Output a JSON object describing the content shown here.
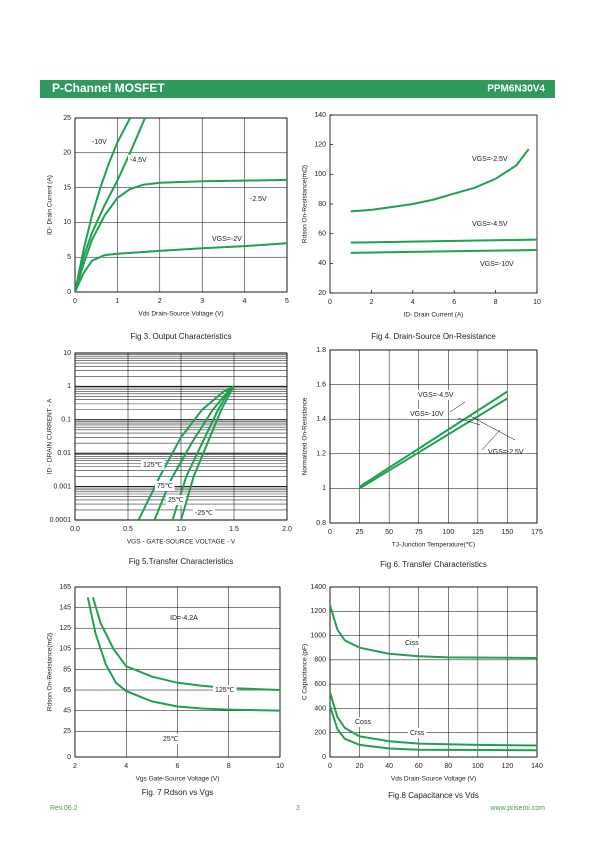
{
  "header": {
    "title": "P-Channel MOSFET",
    "part": "PPM6N30V4"
  },
  "chart_data": [
    {
      "type": "line",
      "caption": "Fig 3. Output Characteristics",
      "xlabel": "Vds Drain-Source Voltage (V)",
      "ylabel": "ID- Drain Current (A)",
      "xlim": [
        0,
        5
      ],
      "ylim": [
        0,
        25
      ],
      "xticks": [
        0,
        1,
        2,
        3,
        4,
        5
      ],
      "yticks": [
        0,
        5,
        10,
        15,
        20,
        25
      ],
      "grid": true,
      "color": "#1ea150",
      "series": [
        {
          "name": "-10V",
          "x": [
            0,
            0.2,
            0.4,
            0.6,
            0.8,
            1,
            1.3
          ],
          "values": [
            0,
            6,
            11,
            15,
            18.5,
            21.5,
            25
          ]
        },
        {
          "name": "-4.5V",
          "x": [
            0,
            0.2,
            0.4,
            0.7,
            1,
            1.3,
            1.65
          ],
          "values": [
            0,
            5,
            8.5,
            12.5,
            16,
            20,
            25
          ]
        },
        {
          "name": "-2.5V",
          "x": [
            0,
            0.2,
            0.4,
            0.7,
            1,
            1.3,
            1.6,
            2,
            3,
            4,
            5
          ],
          "values": [
            0,
            4,
            7.5,
            11,
            13.5,
            14.8,
            15.4,
            15.7,
            15.9,
            16,
            16.1
          ]
        },
        {
          "name": "VGS=-2V",
          "x": [
            0,
            0.2,
            0.4,
            0.7,
            1,
            2,
            3,
            4,
            5
          ],
          "values": [
            0,
            2.7,
            4.5,
            5.3,
            5.5,
            5.9,
            6.3,
            6.6,
            7
          ]
        }
      ]
    },
    {
      "type": "line",
      "caption": "Fig 4. Drain-Source On-Resistance",
      "xlabel": "ID- Drain Current (A)",
      "ylabel": "Rdson On-Resistance(mΩ)",
      "xlim": [
        0,
        10
      ],
      "ylim": [
        20,
        140
      ],
      "xticks": [
        0,
        2,
        4,
        6,
        8,
        10
      ],
      "yticks": [
        20,
        40,
        60,
        80,
        100,
        120,
        140
      ],
      "grid": false,
      "color": "#1ea150",
      "series": [
        {
          "name": "VGS=-2.5V",
          "x": [
            1,
            2,
            3,
            4,
            5,
            6,
            7,
            8,
            9,
            9.6
          ],
          "values": [
            75,
            76,
            78,
            80,
            83,
            87,
            91,
            97,
            106,
            117
          ]
        },
        {
          "name": "VGS=-4.5V",
          "x": [
            1,
            10
          ],
          "values": [
            54,
            56
          ]
        },
        {
          "name": "VGS=-10V",
          "x": [
            1,
            10
          ],
          "values": [
            47,
            49
          ]
        }
      ]
    },
    {
      "type": "line",
      "caption": "Fig 5.Transfer Characteristics",
      "xlabel": "VGS - GATE-SOURCE VOLTAGE - V",
      "ylabel": "ID - DRAIN CURRENT - A",
      "log_y": true,
      "xlim": [
        0,
        2
      ],
      "ylim": [
        0.0001,
        10
      ],
      "xticks": [
        {
          "value": 0,
          "label": "0.0"
        },
        0.5,
        {
          "value": 1,
          "label": "1.0"
        },
        1.5,
        {
          "value": 2,
          "label": "2.0"
        }
      ],
      "yticks": [
        0.0001,
        0.001,
        0.01,
        0.1,
        1,
        10
      ],
      "grid": true,
      "color": "#1ea150",
      "series": [
        {
          "name": "125℃",
          "x": [
            0.6,
            0.8,
            1,
            1.2,
            1.4,
            1.5
          ],
          "values": [
            0.0001,
            0.002,
            0.03,
            0.2,
            0.7,
            1
          ]
        },
        {
          "name": "75℃",
          "x": [
            0.75,
            0.9,
            1.1,
            1.3,
            1.45,
            1.5
          ],
          "values": [
            0.0001,
            0.0015,
            0.02,
            0.2,
            0.75,
            1
          ]
        },
        {
          "name": "25℃",
          "x": [
            0.92,
            1.05,
            1.2,
            1.35,
            1.45,
            1.5
          ],
          "values": [
            0.0001,
            0.002,
            0.02,
            0.2,
            0.7,
            1
          ]
        },
        {
          "name": "-25℃",
          "x": [
            1,
            1.12,
            1.25,
            1.38,
            1.47,
            1.5
          ],
          "values": [
            0.0001,
            0.002,
            0.02,
            0.2,
            0.7,
            1
          ]
        }
      ]
    },
    {
      "type": "line",
      "caption": "Fig 6. Transfer Characteristics",
      "xlabel": "TJ-Junction Temperature(℃)",
      "ylabel": "Normalized On-Resistance",
      "xlim": [
        0,
        175
      ],
      "ylim": [
        0.8,
        1.8
      ],
      "xticks": [
        0,
        25,
        50,
        75,
        100,
        125,
        150,
        175
      ],
      "yticks": [
        0.8,
        1,
        1.2,
        1.4,
        1.6,
        1.8
      ],
      "grid": true,
      "color": "#1ea150",
      "series": [
        {
          "name": "VGS=-4.5V",
          "x": [
            25,
            150
          ],
          "values": [
            1.01,
            1.56
          ]
        },
        {
          "name": "VGS=-10V",
          "x": [
            25,
            150
          ],
          "values": [
            1,
            1.52
          ]
        }
      ],
      "annotations": [
        "VGS=-2.5V"
      ]
    },
    {
      "type": "line",
      "caption": "Fig. 7 Rdson vs Vgs",
      "xlabel": "Vgs Gate-Source Voltage (V)",
      "ylabel": "Rdson On-Resistance(mΩ)",
      "xlim": [
        2,
        10
      ],
      "ylim": [
        0,
        165
      ],
      "xticks": [
        2,
        4,
        6,
        8,
        10
      ],
      "yticks": [
        0,
        25,
        45,
        65,
        85,
        105,
        125,
        145,
        165
      ],
      "grid": true,
      "color": "#1ea150",
      "series": [
        {
          "name": "125℃",
          "x": [
            2.7,
            3,
            3.5,
            4,
            5,
            6,
            7,
            8,
            10
          ],
          "values": [
            155,
            130,
            105,
            88,
            78,
            72,
            69,
            67,
            65
          ]
        },
        {
          "name": "25℃",
          "x": [
            2.5,
            2.8,
            3.2,
            3.6,
            4,
            5,
            6,
            7,
            8,
            10
          ],
          "values": [
            155,
            120,
            90,
            72,
            64,
            54,
            49,
            47,
            46,
            45
          ]
        }
      ],
      "annotations": [
        "ID=-4.2A"
      ]
    },
    {
      "type": "line",
      "caption": "Fig.8 Capacitance vs Vds",
      "xlabel": "Vds Drain-Source Voltage (V)",
      "ylabel": "C Capacitance (pF)",
      "xlim": [
        0,
        140
      ],
      "ylim": [
        0,
        1400
      ],
      "xticks": [
        0,
        20,
        40,
        60,
        80,
        100,
        120,
        140
      ],
      "yticks": [
        0,
        200,
        400,
        600,
        800,
        1000,
        1200,
        1400
      ],
      "grid": true,
      "color": "#1ea150",
      "series": [
        {
          "name": "Ciss",
          "x": [
            0,
            5,
            10,
            20,
            40,
            60,
            80,
            140
          ],
          "values": [
            1250,
            1050,
            960,
            900,
            850,
            830,
            820,
            815
          ]
        },
        {
          "name": "Coss",
          "x": [
            0,
            5,
            10,
            20,
            40,
            60,
            100,
            140
          ],
          "values": [
            530,
            330,
            240,
            170,
            130,
            110,
            100,
            95
          ]
        },
        {
          "name": "Crss",
          "x": [
            0,
            5,
            10,
            20,
            40,
            60,
            140
          ],
          "values": [
            420,
            230,
            150,
            100,
            70,
            60,
            55
          ]
        }
      ]
    }
  ],
  "footer": {
    "rev": "Rev.06.2",
    "page": "3",
    "site": "www.prisemi.com"
  }
}
